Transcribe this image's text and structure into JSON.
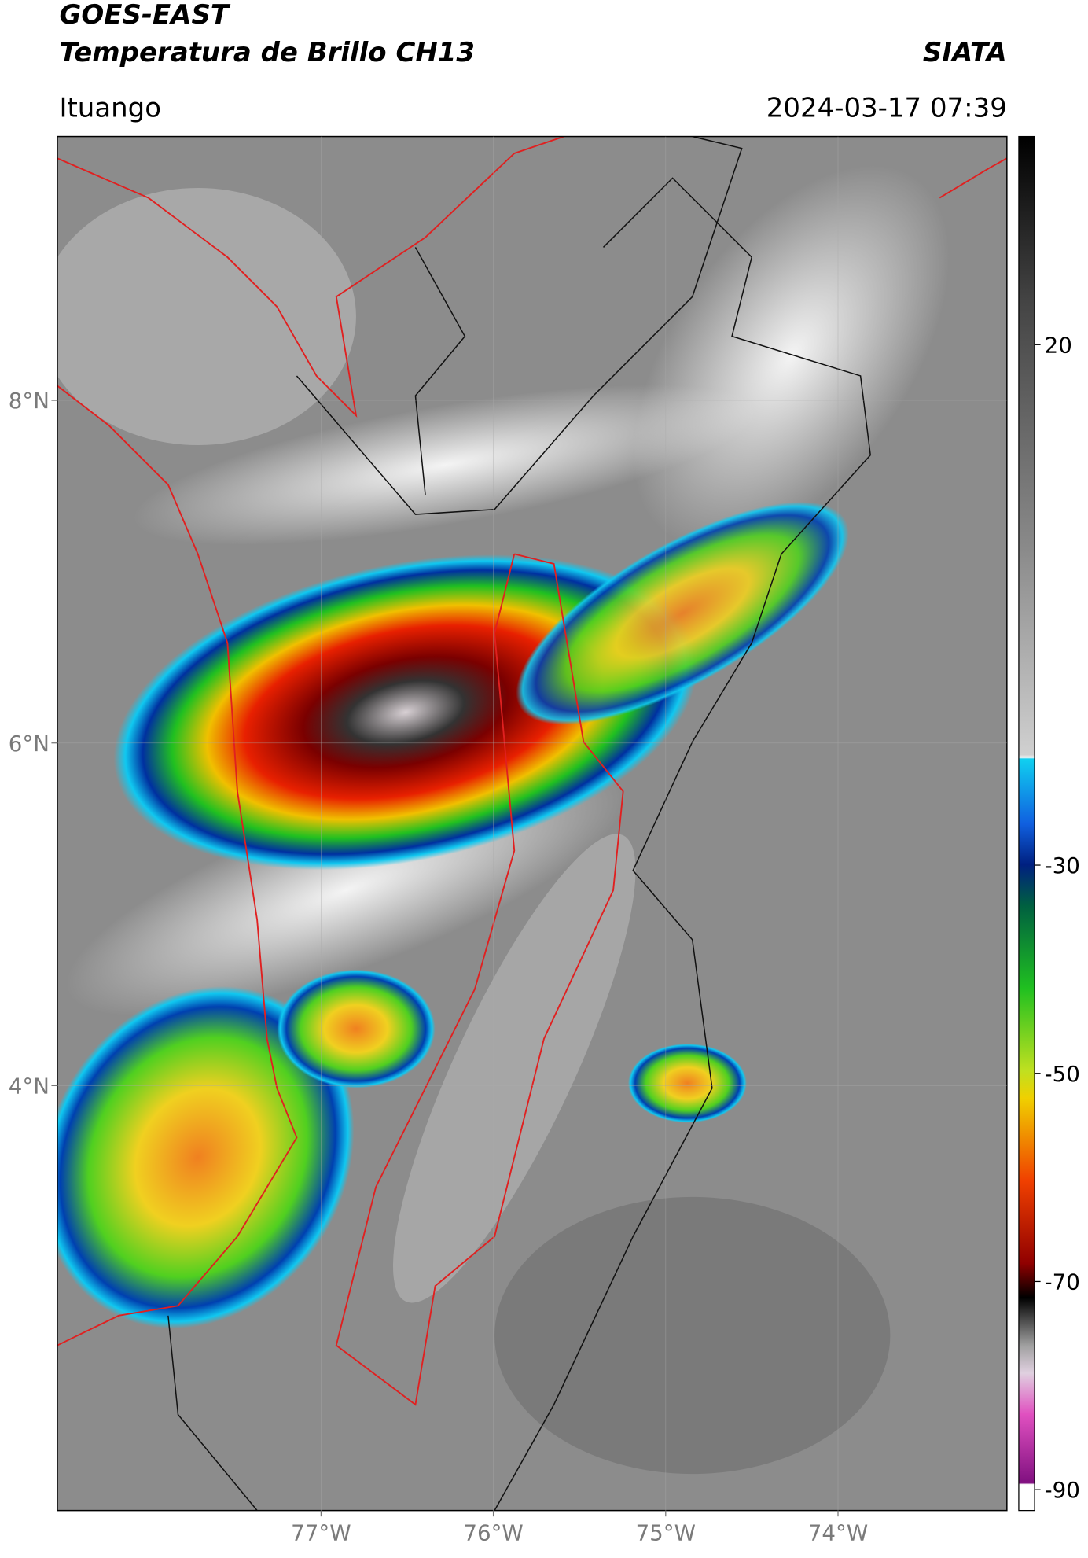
{
  "header": {
    "title": "GOES-EAST",
    "subtitle": "Temperatura de Brillo CH13",
    "agency": "SIATA",
    "location": "Ituango",
    "datetime": "2024-03-17 07:39"
  },
  "map": {
    "xlim": [
      -78.53,
      -73.02
    ],
    "ylim": [
      1.52,
      9.54
    ],
    "xticks": [
      {
        "value": -77,
        "label": "77°W"
      },
      {
        "value": -76,
        "label": "76°W"
      },
      {
        "value": -75,
        "label": "75°W"
      },
      {
        "value": -74,
        "label": "74°W"
      }
    ],
    "yticks": [
      {
        "value": 8,
        "label": "8°N"
      },
      {
        "value": 6,
        "label": "6°N"
      },
      {
        "value": 4,
        "label": "4°N"
      }
    ]
  },
  "colorbar": {
    "lim": [
      -92,
      40
    ],
    "ticks": [
      20,
      -30,
      -50,
      -70,
      -90
    ]
  }
}
